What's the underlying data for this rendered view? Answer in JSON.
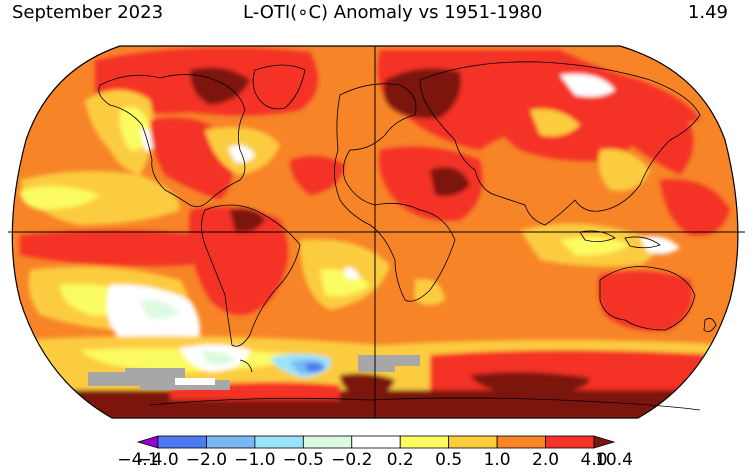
{
  "header": {
    "date": "September 2023",
    "title": "L-OTI(∘C) Anomaly vs 1951-1980",
    "global_mean": "1.49"
  },
  "colorbar": {
    "labels": [
      "−4.1",
      "−4.0",
      "−2.0",
      "−1.0",
      "−0.5",
      "−0.2",
      "0.2",
      "0.5",
      "1.0",
      "2.0",
      "4.0",
      "10.4"
    ],
    "colors": [
      "#9400d3",
      "#4c7af0",
      "#79b8f3",
      "#9ae4fa",
      "#ddfae1",
      "#ffffff",
      "#fbfb62",
      "#fccc3f",
      "#f78427",
      "#f43227",
      "#7c1410"
    ]
  },
  "map": {
    "projection": "Robinson",
    "missing_color": "#a7a7a7",
    "background": "#f78427"
  }
}
